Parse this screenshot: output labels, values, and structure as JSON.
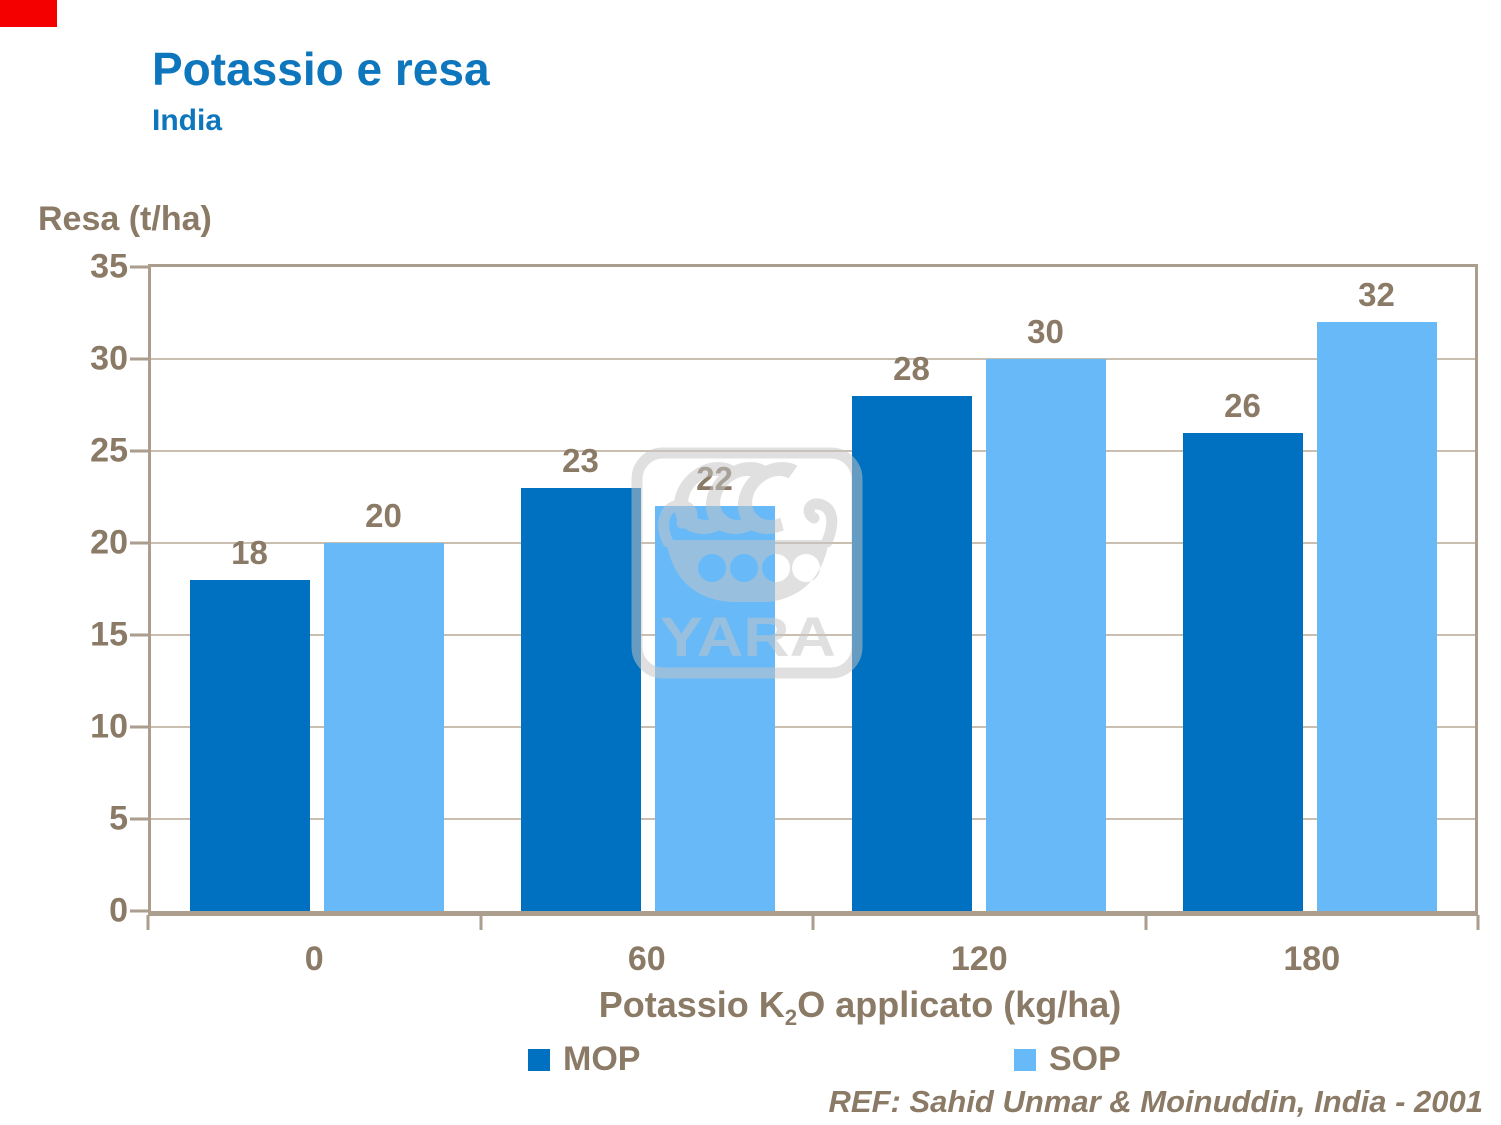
{
  "slide": {
    "reference": "REF: Sahid Unmar & Moinuddin, India - 2001"
  },
  "chart_data": {
    "type": "bar",
    "title": "Potassio e resa",
    "subtitle": "India",
    "ylabel": "Resa (t/ha)",
    "xlabel": "Potassio K2O applicato (kg/ha)",
    "xlabel_parts": {
      "pre": "Potassio K",
      "sub": "2",
      "post": "O applicato (kg/ha)"
    },
    "categories": [
      "0",
      "60",
      "120",
      "180"
    ],
    "series": [
      {
        "name": "MOP",
        "color": "#0070c0",
        "values": [
          18,
          23,
          28,
          26
        ]
      },
      {
        "name": "SOP",
        "color": "#68b9f8",
        "values": [
          20,
          22,
          30,
          32
        ]
      }
    ],
    "ylim": [
      0,
      35
    ],
    "ytick_step": 5,
    "yticks": [
      0,
      5,
      10,
      15,
      20,
      25,
      30,
      35
    ],
    "grid": true,
    "legend_position": "bottom",
    "bar_value_labels": true
  },
  "watermark": {
    "icon": "yara-viking-ship-logo",
    "text": "YARA",
    "color": "#c5c5c5"
  },
  "colors": {
    "accent_red": "#f40000",
    "title_blue": "#0e76bc",
    "text_brown": "#8a7a66",
    "mop_blue": "#0070c0",
    "sop_blue": "#68b9f8",
    "plot_border": "#ab9e8e",
    "gridline": "#c9beaf",
    "background": "#ffffff"
  }
}
